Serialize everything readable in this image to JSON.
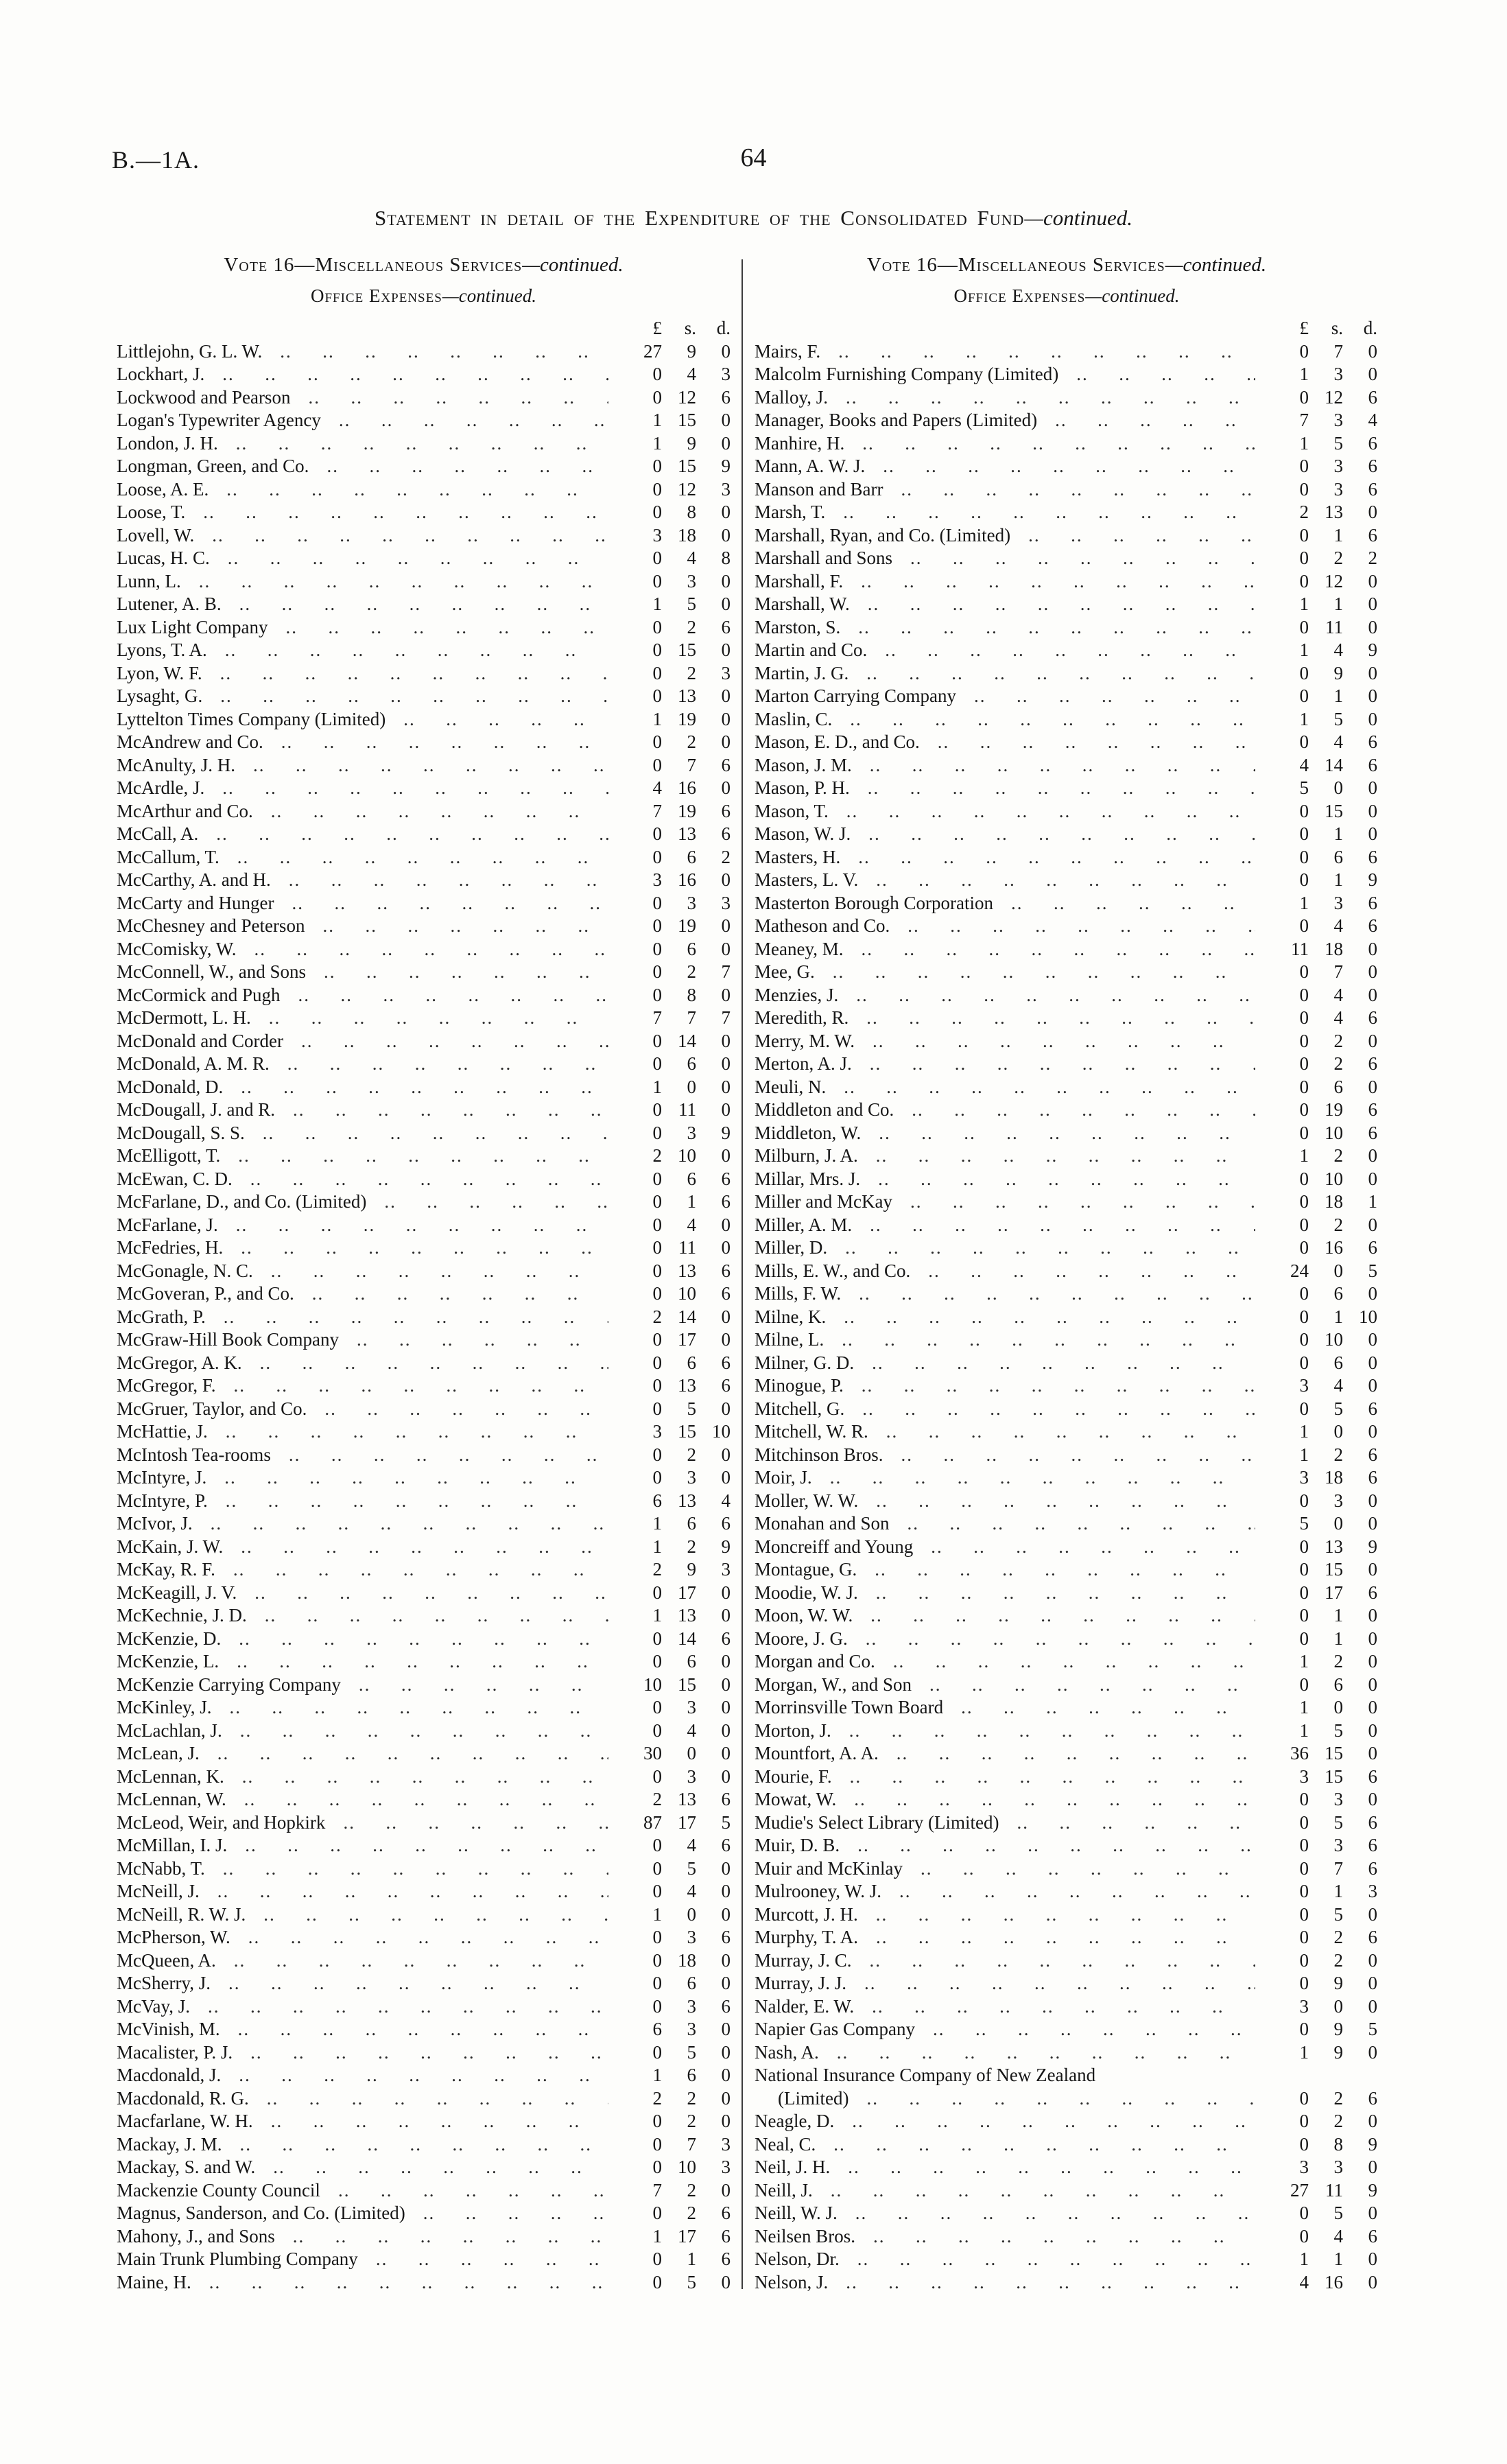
{
  "header": {
    "doc_code": "B.—1A.",
    "page_number": "64",
    "title": "Statement in detail of the Expenditure of the Consolidated Fund",
    "title_continued": "—continued."
  },
  "column_heading": {
    "vote": "Vote 16—Miscellaneous Services",
    "vote_continued": "—continued.",
    "section": "Office Expenses",
    "section_continued": "—continued.",
    "currency": {
      "pounds": "£",
      "shillings": "s.",
      "pence": "d."
    }
  },
  "left_rows": [
    {
      "n": "Littlejohn, G. L. W.",
      "v": [
        "27",
        "9",
        "0"
      ]
    },
    {
      "n": "Lockhart, J.",
      "v": [
        "0",
        "4",
        "3"
      ]
    },
    {
      "n": "Lockwood and Pearson",
      "v": [
        "0",
        "12",
        "6"
      ]
    },
    {
      "n": "Logan's Typewriter Agency",
      "v": [
        "1",
        "15",
        "0"
      ]
    },
    {
      "n": "London, J. H.",
      "v": [
        "1",
        "9",
        "0"
      ]
    },
    {
      "n": "Longman, Green, and Co.",
      "v": [
        "0",
        "15",
        "9"
      ]
    },
    {
      "n": "Loose, A. E.",
      "v": [
        "0",
        "12",
        "3"
      ]
    },
    {
      "n": "Loose, T.",
      "v": [
        "0",
        "8",
        "0"
      ]
    },
    {
      "n": "Lovell, W.",
      "v": [
        "3",
        "18",
        "0"
      ]
    },
    {
      "n": "Lucas, H. C.",
      "v": [
        "0",
        "4",
        "8"
      ]
    },
    {
      "n": "Lunn, L.",
      "v": [
        "0",
        "3",
        "0"
      ]
    },
    {
      "n": "Lutener, A. B.",
      "v": [
        "1",
        "5",
        "0"
      ]
    },
    {
      "n": "Lux Light Company",
      "v": [
        "0",
        "2",
        "6"
      ]
    },
    {
      "n": "Lyons, T. A.",
      "v": [
        "0",
        "15",
        "0"
      ]
    },
    {
      "n": "Lyon, W. F.",
      "v": [
        "0",
        "2",
        "3"
      ]
    },
    {
      "n": "Lysaght, G.",
      "v": [
        "0",
        "13",
        "0"
      ]
    },
    {
      "n": "Lyttelton Times Company (Limited)",
      "v": [
        "1",
        "19",
        "0"
      ]
    },
    {
      "n": "McAndrew and Co.",
      "v": [
        "0",
        "2",
        "0"
      ]
    },
    {
      "n": "McAnulty, J. H.",
      "v": [
        "0",
        "7",
        "6"
      ]
    },
    {
      "n": "McArdle, J.",
      "v": [
        "4",
        "16",
        "0"
      ]
    },
    {
      "n": "McArthur and Co.",
      "v": [
        "7",
        "19",
        "6"
      ]
    },
    {
      "n": "McCall, A.",
      "v": [
        "0",
        "13",
        "6"
      ]
    },
    {
      "n": "McCallum, T.",
      "v": [
        "0",
        "6",
        "2"
      ]
    },
    {
      "n": "McCarthy, A. and H.",
      "v": [
        "3",
        "16",
        "0"
      ]
    },
    {
      "n": "McCarty and Hunger",
      "v": [
        "0",
        "3",
        "3"
      ]
    },
    {
      "n": "McChesney and Peterson",
      "v": [
        "0",
        "19",
        "0"
      ]
    },
    {
      "n": "McComisky, W.",
      "v": [
        "0",
        "6",
        "0"
      ]
    },
    {
      "n": "McConnell, W., and Sons",
      "v": [
        "0",
        "2",
        "7"
      ]
    },
    {
      "n": "McCormick and Pugh",
      "v": [
        "0",
        "8",
        "0"
      ]
    },
    {
      "n": "McDermott, L. H.",
      "v": [
        "7",
        "7",
        "7"
      ]
    },
    {
      "n": "McDonald and Corder",
      "v": [
        "0",
        "14",
        "0"
      ]
    },
    {
      "n": "McDonald, A. M. R.",
      "v": [
        "0",
        "6",
        "0"
      ]
    },
    {
      "n": "McDonald, D.",
      "v": [
        "1",
        "0",
        "0"
      ]
    },
    {
      "n": "McDougall, J. and R.",
      "v": [
        "0",
        "11",
        "0"
      ]
    },
    {
      "n": "McDougall, S. S.",
      "v": [
        "0",
        "3",
        "9"
      ]
    },
    {
      "n": "McElligott, T.",
      "v": [
        "2",
        "10",
        "0"
      ]
    },
    {
      "n": "McEwan, C. D.",
      "v": [
        "0",
        "6",
        "6"
      ]
    },
    {
      "n": "McFarlane, D., and Co. (Limited)",
      "v": [
        "0",
        "1",
        "6"
      ]
    },
    {
      "n": "McFarlane, J.",
      "v": [
        "0",
        "4",
        "0"
      ]
    },
    {
      "n": "McFedries, H.",
      "v": [
        "0",
        "11",
        "0"
      ]
    },
    {
      "n": "McGonagle, N. C.",
      "v": [
        "0",
        "13",
        "6"
      ]
    },
    {
      "n": "McGoveran, P., and Co.",
      "v": [
        "0",
        "10",
        "6"
      ]
    },
    {
      "n": "McGrath, P.",
      "v": [
        "2",
        "14",
        "0"
      ]
    },
    {
      "n": "McGraw-Hill Book Company",
      "v": [
        "0",
        "17",
        "0"
      ]
    },
    {
      "n": "McGregor, A. K.",
      "v": [
        "0",
        "6",
        "6"
      ]
    },
    {
      "n": "McGregor, F.",
      "v": [
        "0",
        "13",
        "6"
      ]
    },
    {
      "n": "McGruer, Taylor, and Co.",
      "v": [
        "0",
        "5",
        "0"
      ]
    },
    {
      "n": "McHattie, J.",
      "v": [
        "3",
        "15",
        "10"
      ]
    },
    {
      "n": "McIntosh Tea-rooms",
      "v": [
        "0",
        "2",
        "0"
      ]
    },
    {
      "n": "McIntyre, J.",
      "v": [
        "0",
        "3",
        "0"
      ]
    },
    {
      "n": "McIntyre, P.",
      "v": [
        "6",
        "13",
        "4"
      ]
    },
    {
      "n": "McIvor, J.",
      "v": [
        "1",
        "6",
        "6"
      ]
    },
    {
      "n": "McKain, J. W.",
      "v": [
        "1",
        "2",
        "9"
      ]
    },
    {
      "n": "McKay, R. F.",
      "v": [
        "2",
        "9",
        "3"
      ]
    },
    {
      "n": "McKeagill, J. V.",
      "v": [
        "0",
        "17",
        "0"
      ]
    },
    {
      "n": "McKechnie, J. D.",
      "v": [
        "1",
        "13",
        "0"
      ]
    },
    {
      "n": "McKenzie, D.",
      "v": [
        "0",
        "14",
        "6"
      ]
    },
    {
      "n": "McKenzie, L.",
      "v": [
        "0",
        "6",
        "0"
      ]
    },
    {
      "n": "McKenzie Carrying Company",
      "v": [
        "10",
        "15",
        "0"
      ]
    },
    {
      "n": "McKinley, J.",
      "v": [
        "0",
        "3",
        "0"
      ]
    },
    {
      "n": "McLachlan, J.",
      "v": [
        "0",
        "4",
        "0"
      ]
    },
    {
      "n": "McLean, J.",
      "v": [
        "30",
        "0",
        "0"
      ]
    },
    {
      "n": "McLennan, K.",
      "v": [
        "0",
        "3",
        "0"
      ]
    },
    {
      "n": "McLennan, W.",
      "v": [
        "2",
        "13",
        "6"
      ]
    },
    {
      "n": "McLeod, Weir, and Hopkirk",
      "v": [
        "87",
        "17",
        "5"
      ]
    },
    {
      "n": "McMillan, I. J.",
      "v": [
        "0",
        "4",
        "6"
      ]
    },
    {
      "n": "McNabb, T.",
      "v": [
        "0",
        "5",
        "0"
      ]
    },
    {
      "n": "McNeill, J.",
      "v": [
        "0",
        "4",
        "0"
      ]
    },
    {
      "n": "McNeill, R. W. J.",
      "v": [
        "1",
        "0",
        "0"
      ]
    },
    {
      "n": "McPherson, W.",
      "v": [
        "0",
        "3",
        "6"
      ]
    },
    {
      "n": "McQueen, A.",
      "v": [
        "0",
        "18",
        "0"
      ]
    },
    {
      "n": "McSherry, J.",
      "v": [
        "0",
        "6",
        "0"
      ]
    },
    {
      "n": "McVay, J.",
      "v": [
        "0",
        "3",
        "6"
      ]
    },
    {
      "n": "McVinish, M.",
      "v": [
        "6",
        "3",
        "0"
      ]
    },
    {
      "n": "Macalister, P. J.",
      "v": [
        "0",
        "5",
        "0"
      ]
    },
    {
      "n": "Macdonald, J.",
      "v": [
        "1",
        "6",
        "0"
      ]
    },
    {
      "n": "Macdonald, R. G.",
      "v": [
        "2",
        "2",
        "0"
      ]
    },
    {
      "n": "Macfarlane, W. H.",
      "v": [
        "0",
        "2",
        "0"
      ]
    },
    {
      "n": "Mackay, J. M.",
      "v": [
        "0",
        "7",
        "3"
      ]
    },
    {
      "n": "Mackay, S. and W.",
      "v": [
        "0",
        "10",
        "3"
      ]
    },
    {
      "n": "Mackenzie County Council",
      "v": [
        "7",
        "2",
        "0"
      ]
    },
    {
      "n": "Magnus, Sanderson, and Co. (Limited)",
      "v": [
        "0",
        "2",
        "6"
      ]
    },
    {
      "n": "Mahony, J., and Sons",
      "v": [
        "1",
        "17",
        "6"
      ]
    },
    {
      "n": "Main Trunk Plumbing Company",
      "v": [
        "0",
        "1",
        "6"
      ]
    },
    {
      "n": "Maine, H.",
      "v": [
        "0",
        "5",
        "0"
      ]
    }
  ],
  "right_rows": [
    {
      "n": "Mairs, F.",
      "v": [
        "0",
        "7",
        "0"
      ]
    },
    {
      "n": "Malcolm Furnishing Company (Limited)",
      "v": [
        "1",
        "3",
        "0"
      ]
    },
    {
      "n": "Malloy, J.",
      "v": [
        "0",
        "12",
        "6"
      ]
    },
    {
      "n": "Manager, Books and Papers (Limited)",
      "v": [
        "7",
        "3",
        "4"
      ]
    },
    {
      "n": "Manhire, H.",
      "v": [
        "1",
        "5",
        "6"
      ]
    },
    {
      "n": "Mann, A. W. J.",
      "v": [
        "0",
        "3",
        "6"
      ]
    },
    {
      "n": "Manson and Barr",
      "v": [
        "0",
        "3",
        "6"
      ]
    },
    {
      "n": "Marsh, T.",
      "v": [
        "2",
        "13",
        "0"
      ]
    },
    {
      "n": "Marshall, Ryan, and Co. (Limited)",
      "v": [
        "0",
        "1",
        "6"
      ]
    },
    {
      "n": "Marshall and Sons",
      "v": [
        "0",
        "2",
        "2"
      ]
    },
    {
      "n": "Marshall, F.",
      "v": [
        "0",
        "12",
        "0"
      ]
    },
    {
      "n": "Marshall, W.",
      "v": [
        "1",
        "1",
        "0"
      ]
    },
    {
      "n": "Marston, S.",
      "v": [
        "0",
        "11",
        "0"
      ]
    },
    {
      "n": "Martin and Co.",
      "v": [
        "1",
        "4",
        "9"
      ]
    },
    {
      "n": "Martin, J. G.",
      "v": [
        "0",
        "9",
        "0"
      ]
    },
    {
      "n": "Marton Carrying Company",
      "v": [
        "0",
        "1",
        "0"
      ]
    },
    {
      "n": "Maslin, C.",
      "v": [
        "1",
        "5",
        "0"
      ]
    },
    {
      "n": "Mason, E. D., and Co.",
      "v": [
        "0",
        "4",
        "6"
      ]
    },
    {
      "n": "Mason, J. M.",
      "v": [
        "4",
        "14",
        "6"
      ]
    },
    {
      "n": "Mason, P. H.",
      "v": [
        "5",
        "0",
        "0"
      ]
    },
    {
      "n": "Mason, T.",
      "v": [
        "0",
        "15",
        "0"
      ]
    },
    {
      "n": "Mason, W. J.",
      "v": [
        "0",
        "1",
        "0"
      ]
    },
    {
      "n": "Masters, H.",
      "v": [
        "0",
        "6",
        "6"
      ]
    },
    {
      "n": "Masters, L. V.",
      "v": [
        "0",
        "1",
        "9"
      ]
    },
    {
      "n": "Masterton Borough Corporation",
      "v": [
        "1",
        "3",
        "6"
      ]
    },
    {
      "n": "Matheson and Co.",
      "v": [
        "0",
        "4",
        "6"
      ]
    },
    {
      "n": "Meaney, M.",
      "v": [
        "11",
        "18",
        "0"
      ]
    },
    {
      "n": "Mee, G.",
      "v": [
        "0",
        "7",
        "0"
      ]
    },
    {
      "n": "Menzies, J.",
      "v": [
        "0",
        "4",
        "0"
      ]
    },
    {
      "n": "Meredith, R.",
      "v": [
        "0",
        "4",
        "6"
      ]
    },
    {
      "n": "Merry, M. W.",
      "v": [
        "0",
        "2",
        "0"
      ]
    },
    {
      "n": "Merton, A. J.",
      "v": [
        "0",
        "2",
        "6"
      ]
    },
    {
      "n": "Meuli, N.",
      "v": [
        "0",
        "6",
        "0"
      ]
    },
    {
      "n": "Middleton and Co.",
      "v": [
        "0",
        "19",
        "6"
      ]
    },
    {
      "n": "Middleton, W.",
      "v": [
        "0",
        "10",
        "6"
      ]
    },
    {
      "n": "Milburn, J. A.",
      "v": [
        "1",
        "2",
        "0"
      ]
    },
    {
      "n": "Millar, Mrs. J.",
      "v": [
        "0",
        "10",
        "0"
      ]
    },
    {
      "n": "Miller and McKay",
      "v": [
        "0",
        "18",
        "1"
      ]
    },
    {
      "n": "Miller, A. M.",
      "v": [
        "0",
        "2",
        "0"
      ]
    },
    {
      "n": "Miller, D.",
      "v": [
        "0",
        "16",
        "6"
      ]
    },
    {
      "n": "Mills, E. W., and Co.",
      "v": [
        "24",
        "0",
        "5"
      ]
    },
    {
      "n": "Mills, F. W.",
      "v": [
        "0",
        "6",
        "0"
      ]
    },
    {
      "n": "Milne, K.",
      "v": [
        "0",
        "1",
        "10"
      ]
    },
    {
      "n": "Milne, L.",
      "v": [
        "0",
        "10",
        "0"
      ]
    },
    {
      "n": "Milner, G. D.",
      "v": [
        "0",
        "6",
        "0"
      ]
    },
    {
      "n": "Minogue, P.",
      "v": [
        "3",
        "4",
        "0"
      ]
    },
    {
      "n": "Mitchell, G.",
      "v": [
        "0",
        "5",
        "6"
      ]
    },
    {
      "n": "Mitchell, W. R.",
      "v": [
        "1",
        "0",
        "0"
      ]
    },
    {
      "n": "Mitchinson Bros.",
      "v": [
        "1",
        "2",
        "6"
      ]
    },
    {
      "n": "Moir, J.",
      "v": [
        "3",
        "18",
        "6"
      ]
    },
    {
      "n": "Moller, W. W.",
      "v": [
        "0",
        "3",
        "0"
      ]
    },
    {
      "n": "Monahan and Son",
      "v": [
        "5",
        "0",
        "0"
      ]
    },
    {
      "n": "Moncreiff and Young",
      "v": [
        "0",
        "13",
        "9"
      ]
    },
    {
      "n": "Montague, G.",
      "v": [
        "0",
        "15",
        "0"
      ]
    },
    {
      "n": "Moodie, W. J.",
      "v": [
        "0",
        "17",
        "6"
      ]
    },
    {
      "n": "Moon, W. W.",
      "v": [
        "0",
        "1",
        "0"
      ]
    },
    {
      "n": "Moore, J. G.",
      "v": [
        "0",
        "1",
        "0"
      ]
    },
    {
      "n": "Morgan and Co.",
      "v": [
        "1",
        "2",
        "0"
      ]
    },
    {
      "n": "Morgan, W., and Son",
      "v": [
        "0",
        "6",
        "0"
      ]
    },
    {
      "n": "Morrinsville Town Board",
      "v": [
        "1",
        "0",
        "0"
      ]
    },
    {
      "n": "Morton, J.",
      "v": [
        "1",
        "5",
        "0"
      ]
    },
    {
      "n": "Mountfort, A. A.",
      "v": [
        "36",
        "15",
        "0"
      ]
    },
    {
      "n": "Mourie, F.",
      "v": [
        "3",
        "15",
        "6"
      ]
    },
    {
      "n": "Mowat, W.",
      "v": [
        "0",
        "3",
        "0"
      ]
    },
    {
      "n": "Mudie's Select Library (Limited)",
      "v": [
        "0",
        "5",
        "6"
      ]
    },
    {
      "n": "Muir, D. B.",
      "v": [
        "0",
        "3",
        "6"
      ]
    },
    {
      "n": "Muir and McKinlay",
      "v": [
        "0",
        "7",
        "6"
      ]
    },
    {
      "n": "Mulrooney, W. J.",
      "v": [
        "0",
        "1",
        "3"
      ]
    },
    {
      "n": "Murcott, J. H.",
      "v": [
        "0",
        "5",
        "0"
      ]
    },
    {
      "n": "Murphy, T. A.",
      "v": [
        "0",
        "2",
        "6"
      ]
    },
    {
      "n": "Murray, J. C.",
      "v": [
        "0",
        "2",
        "0"
      ]
    },
    {
      "n": "Murray, J. J.",
      "v": [
        "0",
        "9",
        "0"
      ]
    },
    {
      "n": "Nalder, E. W.",
      "v": [
        "3",
        "0",
        "0"
      ]
    },
    {
      "n": "Napier Gas Company",
      "v": [
        "0",
        "9",
        "5"
      ]
    },
    {
      "n": "Nash, A.",
      "v": [
        "1",
        "9",
        "0"
      ]
    },
    {
      "n": "National Insurance Company of New Zealand",
      "v": null,
      "noleader": true
    },
    {
      "n": "(Limited)",
      "v": [
        "0",
        "2",
        "6"
      ],
      "indent": true
    },
    {
      "n": "Neagle, D.",
      "v": [
        "0",
        "2",
        "0"
      ]
    },
    {
      "n": "Neal, C.",
      "v": [
        "0",
        "8",
        "9"
      ]
    },
    {
      "n": "Neil, J. H.",
      "v": [
        "3",
        "3",
        "0"
      ]
    },
    {
      "n": "Neill, J.",
      "v": [
        "27",
        "11",
        "9"
      ]
    },
    {
      "n": "Neill, W. J.",
      "v": [
        "0",
        "5",
        "0"
      ]
    },
    {
      "n": "Neilsen Bros.",
      "v": [
        "0",
        "4",
        "6"
      ]
    },
    {
      "n": "Nelson, Dr.",
      "v": [
        "1",
        "1",
        "0"
      ]
    },
    {
      "n": "Nelson, J.",
      "v": [
        "4",
        "16",
        "0"
      ]
    }
  ]
}
